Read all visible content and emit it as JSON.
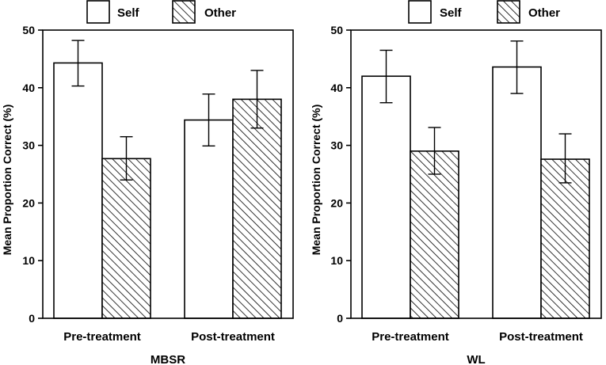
{
  "chart_data": [
    {
      "type": "bar",
      "panel_title": "MBSR",
      "ylabel": "Mean Proportion Correct (%)",
      "ylim": [
        0,
        50
      ],
      "yticks": [
        "0",
        "10",
        "20",
        "30",
        "40",
        "50"
      ],
      "categories": [
        "Pre-treatment",
        "Post-treatment"
      ],
      "series": [
        {
          "name": "Self",
          "fill": "open",
          "values": [
            44.3,
            34.4
          ],
          "error_low": [
            40.3,
            29.9
          ],
          "error_high": [
            48.2,
            38.9
          ]
        },
        {
          "name": "Other",
          "fill": "hatched",
          "values": [
            27.7,
            38.0
          ],
          "error_low": [
            24.0,
            33.0
          ],
          "error_high": [
            31.5,
            43.0
          ]
        }
      ],
      "legend": {
        "position": "top",
        "entries": [
          "Self",
          "Other"
        ]
      },
      "grid": false
    },
    {
      "type": "bar",
      "panel_title": "WL",
      "ylabel": "Mean Proportion Correct (%)",
      "ylim": [
        0,
        50
      ],
      "yticks": [
        "0",
        "10",
        "20",
        "30",
        "40",
        "50"
      ],
      "categories": [
        "Pre-treatment",
        "Post-treatment"
      ],
      "series": [
        {
          "name": "Self",
          "fill": "open",
          "values": [
            42.0,
            43.6
          ],
          "error_low": [
            37.4,
            39.0
          ],
          "error_high": [
            46.5,
            48.1
          ]
        },
        {
          "name": "Other",
          "fill": "hatched",
          "values": [
            29.0,
            27.6
          ],
          "error_low": [
            25.0,
            23.5
          ],
          "error_high": [
            33.1,
            32.0
          ]
        }
      ],
      "legend": {
        "position": "top",
        "entries": [
          "Self",
          "Other"
        ]
      },
      "grid": false
    }
  ]
}
